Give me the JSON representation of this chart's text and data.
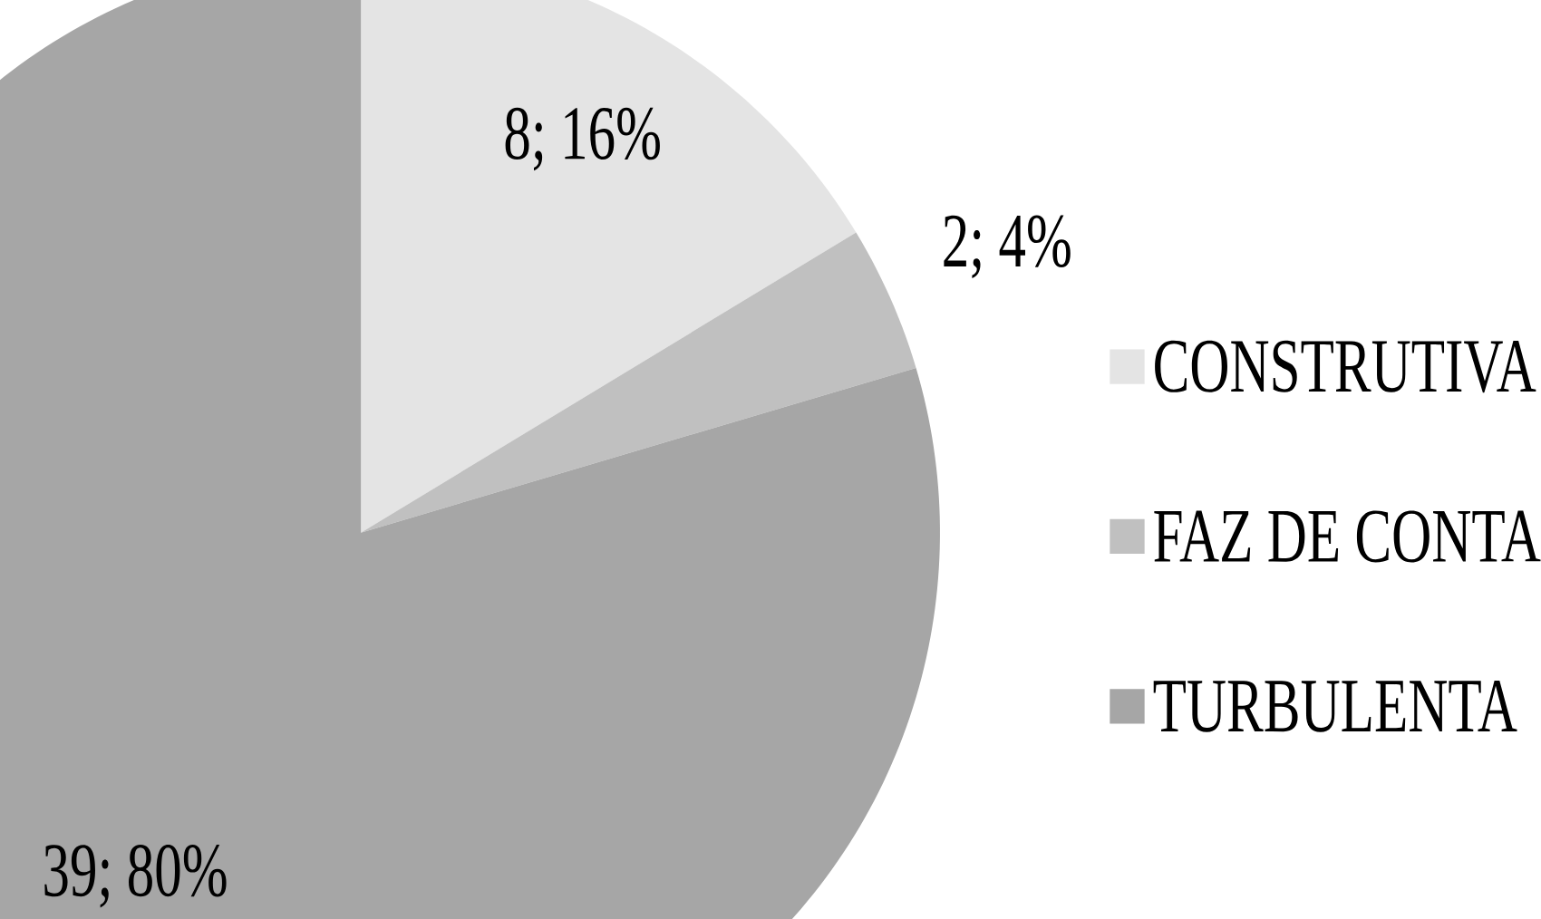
{
  "chart_data": {
    "type": "pie",
    "categories": [
      "CONSTRUTIVA",
      "FAZ DE CONTA",
      "TURBULENTA"
    ],
    "values": [
      8,
      2,
      39
    ],
    "colors": [
      "#e4e4e4",
      "#c0c0c0",
      "#a6a6a6"
    ],
    "value_labels": [
      "8; 16%",
      "2; 4%",
      "39; 80%"
    ],
    "legend": "right"
  }
}
